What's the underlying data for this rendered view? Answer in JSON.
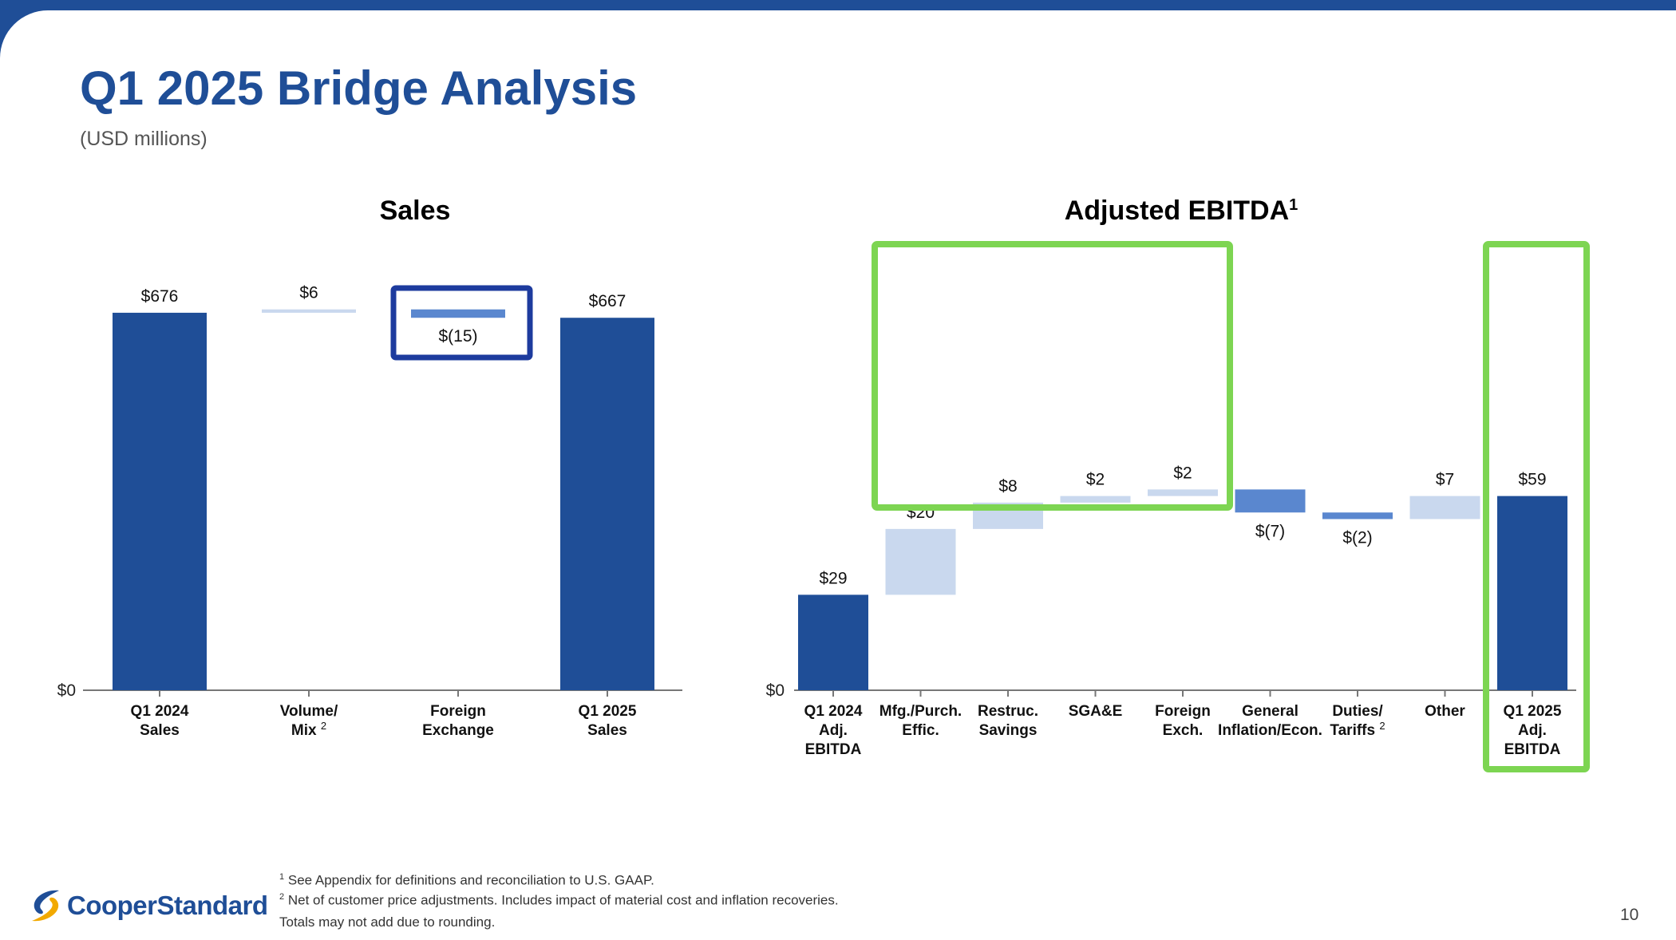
{
  "page": {
    "title": "Q1 2025 Bridge Analysis",
    "subtitle": "(USD millions)",
    "page_number": "10",
    "totals_note": "Totals may not add due to rounding.",
    "footnotes": [
      {
        "marker": "1",
        "text": "See Appendix for definitions and reconciliation to U.S. GAAP."
      },
      {
        "marker": "2",
        "text": "Net of customer price adjustments. Includes impact of material cost and inflation recoveries."
      }
    ],
    "logo_text": "CooperStandard",
    "colors": {
      "brand_blue": "#1f4e97",
      "total_bar": "#1f4e97",
      "increase_bar": "#c9d8ee",
      "decrease_bar": "#5a87cf",
      "highlight_navy": "#1d3b9e",
      "highlight_green": "#7dd552"
    }
  },
  "chart_data": [
    {
      "type": "bar",
      "subtype": "waterfall",
      "title": "Sales",
      "zero_label": "$0",
      "categories": [
        {
          "lines": [
            "Q1 2024",
            "Sales"
          ],
          "sup": ""
        },
        {
          "lines": [
            "Volume/",
            "Mix"
          ],
          "sup": "2"
        },
        {
          "lines": [
            "Foreign",
            "Exchange"
          ],
          "sup": ""
        },
        {
          "lines": [
            "Q1 2025",
            "Sales"
          ],
          "sup": ""
        }
      ],
      "values": [
        676,
        6,
        -15,
        667
      ],
      "kinds": [
        "total",
        "increase",
        "decrease",
        "total"
      ],
      "value_labels": [
        "$676",
        "$6",
        "$(15)",
        "$667"
      ],
      "highlight_navy": [
        2
      ]
    },
    {
      "type": "bar",
      "subtype": "waterfall",
      "title": "Adjusted EBITDA",
      "title_sup": "1",
      "zero_label": "$0",
      "categories": [
        {
          "lines": [
            "Q1 2024",
            "Adj.",
            "EBITDA"
          ],
          "sup": ""
        },
        {
          "lines": [
            "Mfg./Purch.",
            "Effic."
          ],
          "sup": ""
        },
        {
          "lines": [
            "Restruc.",
            "Savings"
          ],
          "sup": ""
        },
        {
          "lines": [
            "SGA&E"
          ],
          "sup": ""
        },
        {
          "lines": [
            "Foreign",
            "Exch."
          ],
          "sup": ""
        },
        {
          "lines": [
            "General",
            "Inflation/Econ."
          ],
          "sup": ""
        },
        {
          "lines": [
            "Duties/",
            "Tariffs"
          ],
          "sup": "2"
        },
        {
          "lines": [
            "Other"
          ],
          "sup": ""
        },
        {
          "lines": [
            "Q1 2025",
            "Adj.",
            "EBITDA"
          ],
          "sup": ""
        }
      ],
      "values": [
        29,
        20,
        8,
        2,
        2,
        -7,
        -2,
        7,
        59
      ],
      "kinds": [
        "total",
        "increase",
        "increase",
        "increase",
        "increase",
        "decrease",
        "decrease",
        "increase",
        "total"
      ],
      "value_labels": [
        "$29",
        "$20",
        "$8",
        "$2",
        "$2",
        "$(7)",
        "$(2)",
        "$7",
        "$59"
      ],
      "highlight_green_groups": [
        [
          1,
          4
        ],
        [
          8,
          8
        ]
      ]
    }
  ]
}
